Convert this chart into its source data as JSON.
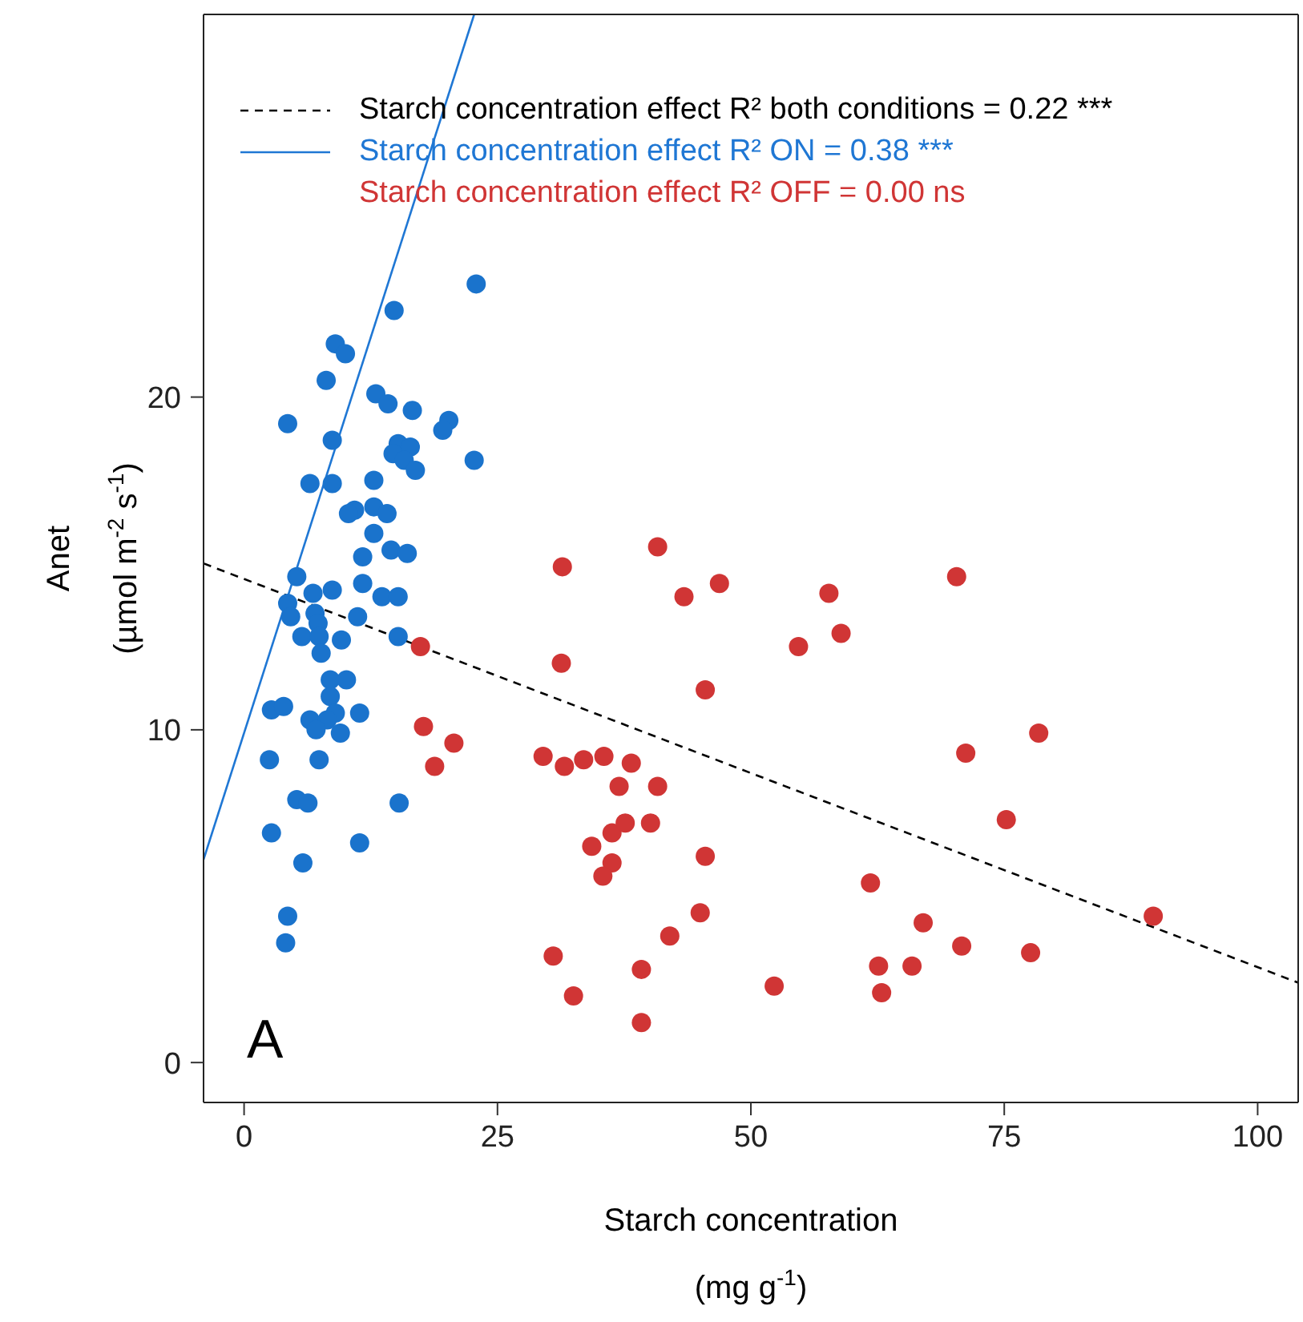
{
  "chart_data": {
    "type": "scatter",
    "xlabel": "Starch concentration\n(mg g$^{-1}$)",
    "ylabel": "Anet\n(µmol m$^{-2}$ s$^{-1}$)",
    "xlim": [
      -4,
      104
    ],
    "ylim": [
      -1.2,
      31.5
    ],
    "xticks": [
      0,
      25,
      50,
      75,
      100
    ],
    "yticks": [
      0,
      10,
      20
    ],
    "legend": "top",
    "marker": "circle",
    "annotations": [
      "A"
    ],
    "series": [
      {
        "name": "Starch concentration effect R² both conditions = 0.22 ***",
        "type": "line",
        "marker": "none",
        "line_style": "dashed",
        "color": "#000000",
        "x": [
          -4,
          104
        ],
        "values": [
          15.0,
          2.4
        ]
      },
      {
        "name": "Starch concentration effect R² ON = 0.38  ***",
        "type": "line",
        "marker": "none",
        "line_style": "solid",
        "color": "#1f77d4",
        "x": [
          -4,
          22.7
        ],
        "values": [
          6.1,
          31.5
        ]
      },
      {
        "color": "#1a73cc",
        "x": [
          22.9,
          14.8,
          9.0,
          10.0,
          8.1,
          13.0,
          4.3,
          14.2,
          16.6,
          8.7,
          20.2,
          19.6,
          22.7,
          15.2,
          16.4,
          14.7,
          15.8,
          16.9,
          6.5,
          8.7,
          12.8,
          10.9,
          10.3,
          12.8,
          14.1,
          12.8,
          11.7,
          14.5,
          16.1,
          5.2,
          6.8,
          8.7,
          11.7,
          13.6,
          15.2,
          4.3,
          4.6,
          7.0,
          7.3,
          11.2,
          5.7,
          7.4,
          9.6,
          15.2,
          7.6,
          8.5,
          10.1,
          8.5,
          2.7,
          3.9,
          9.0,
          11.4,
          6.5,
          8.2,
          7.1,
          9.5,
          2.5,
          7.4,
          5.2,
          6.3,
          15.3,
          2.7,
          11.4,
          5.8,
          4.3,
          4.1
        ],
        "values": [
          23.4,
          22.6,
          21.6,
          21.3,
          20.5,
          20.1,
          19.2,
          19.8,
          19.6,
          18.7,
          19.3,
          19.0,
          18.1,
          18.6,
          18.5,
          18.3,
          18.1,
          17.8,
          17.4,
          17.4,
          17.5,
          16.6,
          16.5,
          16.7,
          16.5,
          15.9,
          15.2,
          15.4,
          15.3,
          14.6,
          14.1,
          14.2,
          14.4,
          14.0,
          14.0,
          13.8,
          13.4,
          13.5,
          13.2,
          13.4,
          12.8,
          12.8,
          12.7,
          12.8,
          12.3,
          11.5,
          11.5,
          11.0,
          10.6,
          10.7,
          10.5,
          10.5,
          10.3,
          10.3,
          10.0,
          9.9,
          9.1,
          9.1,
          7.9,
          7.8,
          7.8,
          6.9,
          6.6,
          6.0,
          4.4,
          3.6
        ]
      },
      {
        "name": "Starch concentration effect R² OFF = 0.00 ns",
        "color": "#d03535",
        "x": [
          17.4,
          17.7,
          20.7,
          18.8,
          40.8,
          31.4,
          43.4,
          46.9,
          57.7,
          31.3,
          54.7,
          58.9,
          45.5,
          29.5,
          31.6,
          33.5,
          35.5,
          38.2,
          37.0,
          40.8,
          36.3,
          37.6,
          40.1,
          34.3,
          36.3,
          35.4,
          45.5,
          45.0,
          42.0,
          30.5,
          39.2,
          52.3,
          32.5,
          39.2,
          70.3,
          78.4,
          71.2,
          75.2,
          61.8,
          89.7,
          67.0,
          70.8,
          77.6,
          62.6,
          65.9,
          62.9
        ],
        "values": [
          12.5,
          10.1,
          9.6,
          8.9,
          15.5,
          14.9,
          14.0,
          14.4,
          14.1,
          12.0,
          12.5,
          12.9,
          11.2,
          9.2,
          8.9,
          9.1,
          9.2,
          9.0,
          8.3,
          8.3,
          6.9,
          7.2,
          7.2,
          6.5,
          6.0,
          5.6,
          6.2,
          4.5,
          3.8,
          3.2,
          2.8,
          2.3,
          2.0,
          1.2,
          14.6,
          9.9,
          9.3,
          7.3,
          5.4,
          4.4,
          4.2,
          3.5,
          3.3,
          2.9,
          2.9,
          2.1
        ]
      }
    ]
  }
}
